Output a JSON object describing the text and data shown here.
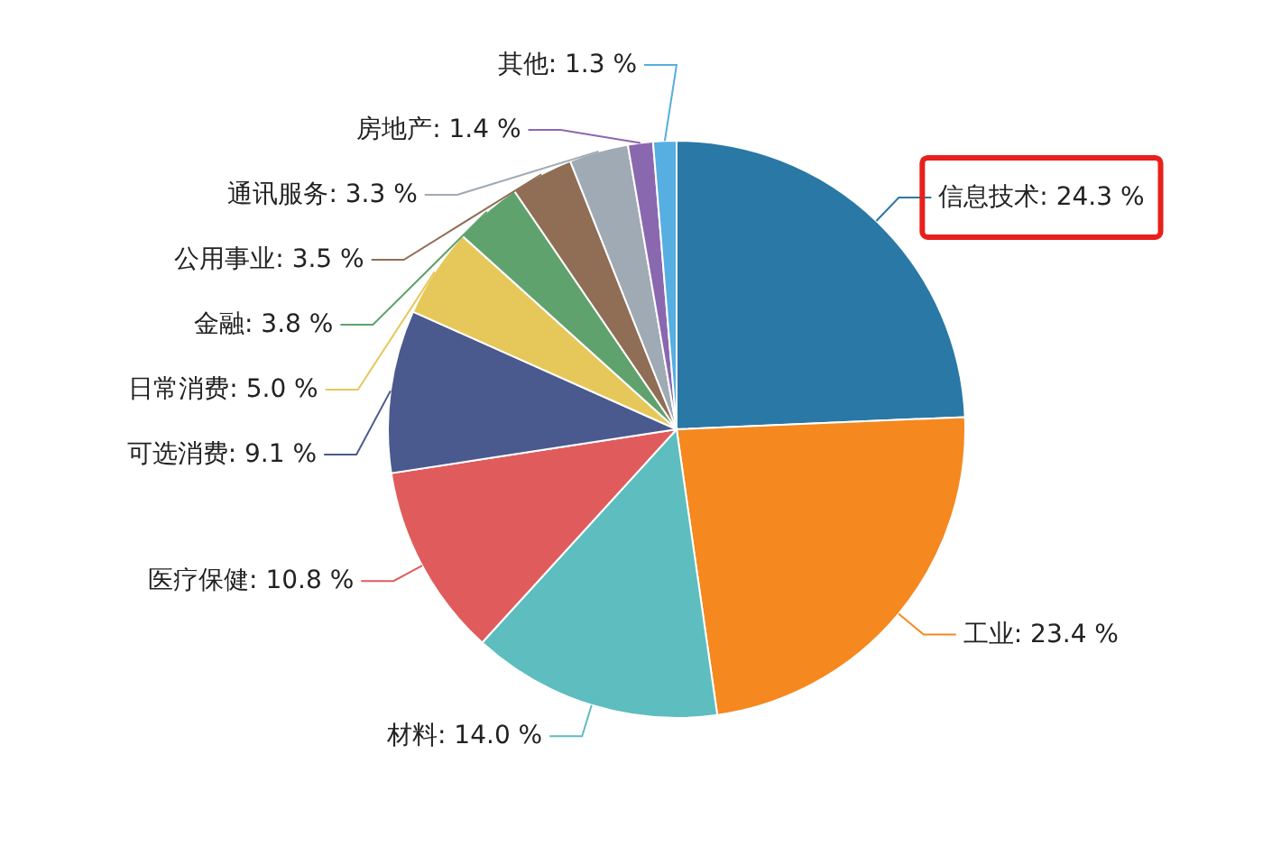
{
  "chart_data": {
    "type": "pie",
    "categories": [
      "信息技术",
      "工业",
      "材料",
      "医疗保健",
      "可选消费",
      "日常消费",
      "金融",
      "公用事业",
      "通讯服务",
      "房地产",
      "其他"
    ],
    "values": [
      24.3,
      23.4,
      14.0,
      10.8,
      9.1,
      5.0,
      3.8,
      3.5,
      3.3,
      1.4,
      1.3
    ],
    "value_labels": [
      "24.3 %",
      "23.4 %",
      "14.0 %",
      "10.8 %",
      "9.1 %",
      "5.0 %",
      "3.8 %",
      "3.5 %",
      "3.3 %",
      "1.4 %",
      "1.3 %"
    ],
    "colors": [
      "#2a78a6",
      "#f5881f",
      "#5dbdbf",
      "#e05c5c",
      "#4a5a8e",
      "#e6c85a",
      "#5fa26e",
      "#8f6e55",
      "#a0aab4",
      "#8a68b0",
      "#57aee0"
    ]
  }
}
